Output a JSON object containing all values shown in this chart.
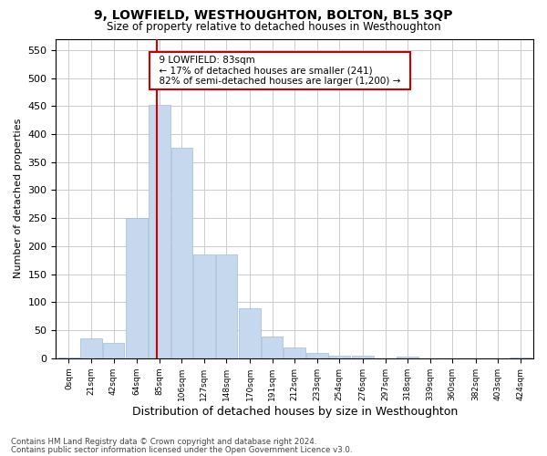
{
  "title": "9, LOWFIELD, WESTHOUGHTON, BOLTON, BL5 3QP",
  "subtitle": "Size of property relative to detached houses in Westhoughton",
  "xlabel": "Distribution of detached houses by size in Westhoughton",
  "ylabel": "Number of detached properties",
  "footnote1": "Contains HM Land Registry data © Crown copyright and database right 2024.",
  "footnote2": "Contains public sector information licensed under the Open Government Licence v3.0.",
  "annotation_title": "9 LOWFIELD: 83sqm",
  "annotation_line1": "← 17% of detached houses are smaller (241)",
  "annotation_line2": "82% of semi-detached houses are larger (1,200) →",
  "property_size": 83,
  "bar_color": "#c5d8ed",
  "bar_edge_color": "#a0bcda",
  "vline_color": "#cc0000",
  "annotation_box_color": "#ffffff",
  "annotation_box_edge": "#cc0000",
  "bar_centers": [
    0,
    21,
    42,
    64,
    85,
    106,
    127,
    148,
    170,
    191,
    212,
    233,
    254,
    276,
    297,
    318,
    339,
    360,
    382,
    403,
    424
  ],
  "bar_heights": [
    2,
    35,
    27,
    251,
    452,
    375,
    185,
    185,
    90,
    38,
    19,
    10,
    5,
    5,
    0,
    3,
    0,
    0,
    0,
    0,
    2
  ],
  "bin_width": 21,
  "ylim": [
    0,
    570
  ],
  "yticks": [
    0,
    50,
    100,
    150,
    200,
    250,
    300,
    350,
    400,
    450,
    500,
    550
  ],
  "background_color": "#ffffff",
  "grid_color": "#cccccc"
}
